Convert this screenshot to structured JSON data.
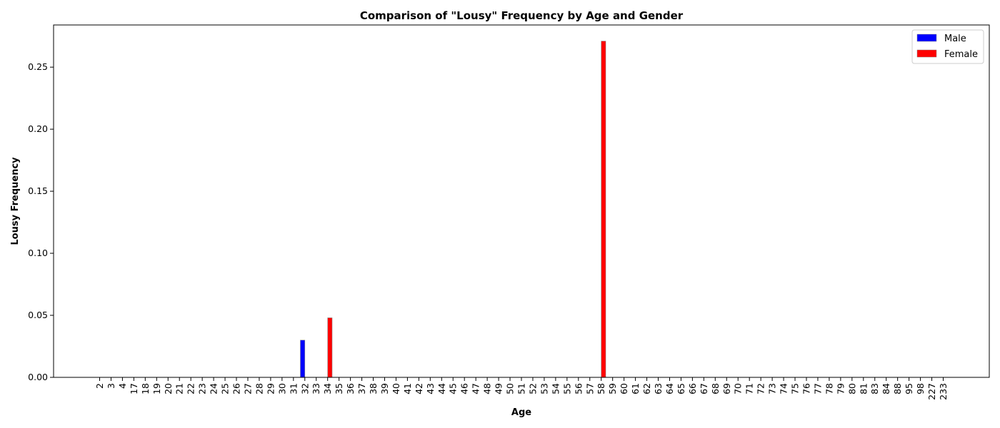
{
  "chart_data": {
    "type": "bar",
    "title": "Comparison of \"Lousy\" Frequency by Age and Gender",
    "xlabel": "Age",
    "ylabel": "Lousy Frequency",
    "ylim": [
      0,
      0.284
    ],
    "yticks": [
      0.0,
      0.05,
      0.1,
      0.15,
      0.2,
      0.25
    ],
    "ytick_labels": [
      "0.00",
      "0.05",
      "0.10",
      "0.15",
      "0.20",
      "0.25"
    ],
    "grid": false,
    "legend_position": "top-right",
    "categories": [
      "2",
      "3",
      "4",
      "17",
      "18",
      "19",
      "20",
      "21",
      "22",
      "23",
      "24",
      "25",
      "26",
      "27",
      "28",
      "29",
      "30",
      "31",
      "32",
      "33",
      "34",
      "35",
      "36",
      "37",
      "38",
      "39",
      "40",
      "41",
      "42",
      "43",
      "44",
      "45",
      "46",
      "47",
      "48",
      "49",
      "50",
      "51",
      "52",
      "53",
      "54",
      "55",
      "56",
      "57",
      "58",
      "59",
      "60",
      "61",
      "62",
      "63",
      "64",
      "65",
      "66",
      "67",
      "68",
      "69",
      "70",
      "71",
      "72",
      "73",
      "74",
      "75",
      "76",
      "77",
      "78",
      "79",
      "80",
      "81",
      "83",
      "84",
      "88",
      "95",
      "98",
      "227",
      "233"
    ],
    "series": [
      {
        "name": "Male",
        "color": "#0000ff",
        "values": [
          0,
          0,
          0,
          0,
          0,
          0,
          0,
          0,
          0,
          0,
          0,
          0,
          0,
          0,
          0,
          0,
          0,
          0,
          0.03,
          0,
          0,
          0,
          0,
          0,
          0,
          0,
          0,
          0,
          0,
          0,
          0,
          0,
          0,
          0,
          0,
          0,
          0,
          0,
          0,
          0,
          0,
          0,
          0,
          0,
          0,
          0,
          0,
          0,
          0,
          0,
          0,
          0,
          0,
          0,
          0,
          0,
          0,
          0,
          0,
          0,
          0,
          0,
          0,
          0,
          0,
          0,
          0,
          0,
          0,
          0,
          0,
          0,
          0,
          0,
          0
        ]
      },
      {
        "name": "Female",
        "color": "#ff0000",
        "values": [
          0,
          0,
          0,
          0,
          0,
          0,
          0,
          0,
          0,
          0,
          0,
          0,
          0,
          0,
          0,
          0,
          0,
          0,
          0,
          0,
          0.048,
          0,
          0,
          0,
          0,
          0,
          0,
          0,
          0,
          0,
          0,
          0,
          0,
          0,
          0,
          0,
          0,
          0,
          0,
          0,
          0,
          0,
          0,
          0,
          0.271,
          0,
          0,
          0,
          0,
          0,
          0,
          0,
          0,
          0,
          0,
          0,
          0,
          0,
          0,
          0,
          0,
          0,
          0,
          0,
          0,
          0,
          0,
          0,
          0,
          0,
          0,
          0,
          0,
          0,
          0
        ]
      }
    ]
  }
}
